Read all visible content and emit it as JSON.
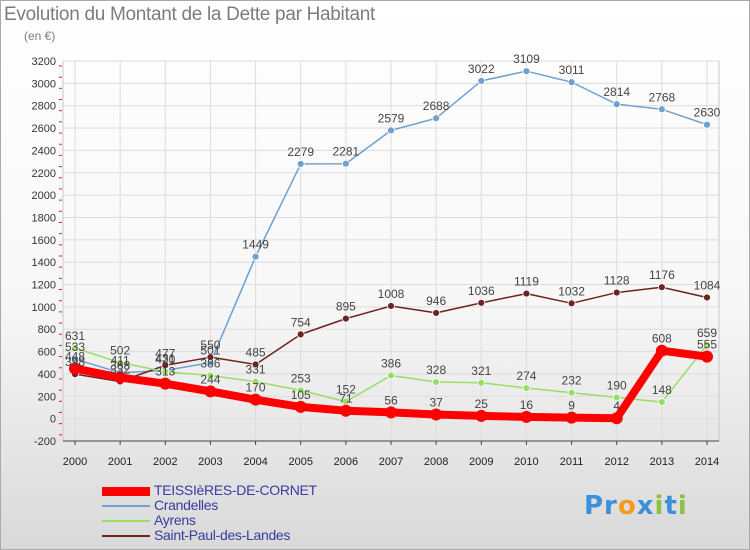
{
  "title": "Evolution du Montant de la Dette par Habitant",
  "unit_label": "(en €)",
  "logo": {
    "parts": [
      "Pr",
      "o",
      "x",
      "i",
      "t",
      "i"
    ],
    "colors": [
      "#3c8fd8",
      "#f39a1f",
      "#3c8fd8",
      "#8bc53f",
      "#3c8fd8",
      "#8bc53f"
    ]
  },
  "chart_data": {
    "type": "line",
    "x": [
      2000,
      2001,
      2002,
      2003,
      2004,
      2005,
      2006,
      2007,
      2008,
      2009,
      2010,
      2011,
      2012,
      2013,
      2014
    ],
    "ylim": [
      -200,
      3200
    ],
    "yticks": [
      -200,
      0,
      200,
      400,
      600,
      800,
      1000,
      1200,
      1400,
      1600,
      1800,
      2000,
      2200,
      2400,
      2600,
      2800,
      3000,
      3200
    ],
    "grid": true,
    "legend_position": "bottom-left",
    "series": [
      {
        "name": "TEISSIèRES-DE-CORNET",
        "color": "#ff0000",
        "values": [
          448,
          368,
          313,
          244,
          170,
          105,
          71,
          56,
          37,
          25,
          16,
          9,
          4,
          608,
          555
        ],
        "labels": [
          "448",
          "368",
          "313",
          "244",
          "170",
          "105",
          "71",
          "56",
          "37",
          "25",
          "16",
          "9",
          "4",
          "608",
          "555"
        ]
      },
      {
        "name": "Crandelles",
        "color": "#6ea0d0",
        "values": [
          533,
          411,
          431,
          501,
          1449,
          2279,
          2281,
          2579,
          2688,
          3022,
          3109,
          3011,
          2814,
          2768,
          2630
        ],
        "labels": [
          "533",
          "411",
          "431",
          "501",
          "1449",
          "2279",
          "2281",
          "2579",
          "2688",
          "3022",
          "3109",
          "3011",
          "2814",
          "2768",
          "2630"
        ]
      },
      {
        "name": "Ayrens",
        "color": "#99dd66",
        "values": [
          631,
          502,
          420,
          386,
          331,
          253,
          152,
          386,
          328,
          321,
          274,
          232,
          190,
          148,
          659
        ],
        "labels": [
          "631",
          "502",
          "420",
          "386",
          "331",
          "253",
          "152",
          "386",
          "328",
          "321",
          "274",
          "232",
          "190",
          "148",
          "659"
        ]
      },
      {
        "name": "Saint-Paul-des-Landes",
        "color": "#6e2222",
        "values": [
          398,
          332,
          477,
          550,
          485,
          754,
          895,
          1008,
          946,
          1036,
          1119,
          1032,
          1128,
          1176,
          1084
        ],
        "labels": [
          "398",
          "332",
          "477",
          "550",
          "485",
          "754",
          "895",
          "1008",
          "946",
          "1036",
          "1119",
          "1032",
          "1128",
          "1176",
          "1084"
        ]
      }
    ]
  }
}
